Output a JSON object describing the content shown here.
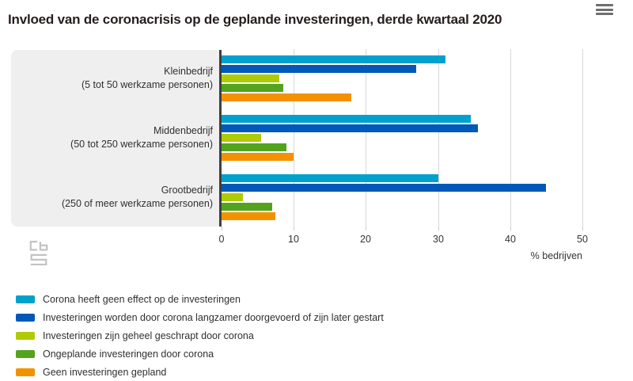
{
  "header": {
    "menu_icon": "hamburger"
  },
  "chart_data": {
    "type": "bar",
    "orientation": "horizontal",
    "title": "Invloed van de coronacrisis op de geplande investeringen, derde kwartaal 2020",
    "categories": [
      {
        "label": "Kleinbedrijf",
        "sublabel": "(5 tot 50 werkzame personen)"
      },
      {
        "label": "Middenbedrijf",
        "sublabel": "(50 tot 250 werkzame personen)"
      },
      {
        "label": "Grootbedrijf",
        "sublabel": "(250 of meer werkzame personen)"
      }
    ],
    "series": [
      {
        "name": "Corona heeft geen effect op de investeringen",
        "color": "#00a1cd",
        "values": [
          31,
          34.5,
          30
        ]
      },
      {
        "name": "Investeringen worden door corona langzamer doorgevoerd of zijn later gestart",
        "color": "#0058b8",
        "values": [
          27,
          35.5,
          45
        ]
      },
      {
        "name": "Investeringen zijn geheel geschrapt door corona",
        "color": "#afcb05",
        "values": [
          8,
          5.5,
          3
        ]
      },
      {
        "name": "Ongeplande investeringen door corona",
        "color": "#53a31d",
        "values": [
          8.5,
          9,
          7
        ]
      },
      {
        "name": "Geen investeringen gepland",
        "color": "#f39200",
        "values": [
          18,
          10,
          7.5
        ]
      }
    ],
    "xlabel": "% bedrijven",
    "xlim": [
      0,
      50
    ],
    "xticks": [
      0,
      10,
      20,
      30,
      40,
      50
    ],
    "grid": true,
    "legend_position": "bottom"
  },
  "branding": {
    "logo": "cbs"
  },
  "colors": {
    "panel_background": "#efefef",
    "axis_line": "#3f3f3f",
    "gridline": "#d9d9d9",
    "title_text": "#271d1d",
    "body_text": "#303030"
  }
}
